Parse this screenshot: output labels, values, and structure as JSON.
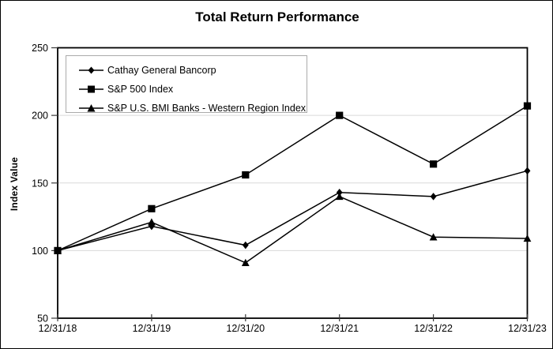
{
  "window": {
    "title": "Total Return Performance"
  },
  "chart_data": {
    "type": "line",
    "title": "Total Return Performance",
    "xlabel": "",
    "ylabel": "Index Value",
    "categories": [
      "12/31/18",
      "12/31/19",
      "12/31/20",
      "12/31/21",
      "12/31/22",
      "12/31/23"
    ],
    "series": [
      {
        "name": "Cathay General Bancorp",
        "marker": "diamond",
        "values": [
          100,
          118,
          104,
          143,
          140,
          159
        ]
      },
      {
        "name": "S&P 500 Index",
        "marker": "square",
        "values": [
          100,
          131,
          156,
          200,
          164,
          207
        ]
      },
      {
        "name": "S&P U.S. BMI Banks - Western Region Index",
        "marker": "triangle",
        "values": [
          100,
          121,
          91,
          140,
          110,
          109
        ]
      }
    ],
    "ylim": [
      50,
      250
    ],
    "yticks": [
      50,
      100,
      150,
      200,
      250
    ],
    "gridlines": [
      100,
      150,
      200
    ],
    "grid": "horizontal-light",
    "legend_position": "top-left-inside",
    "colors": {
      "line": "#000000",
      "marker": "#000000",
      "gridline": "#d9d9d9",
      "frame": "#000000",
      "tick": "#3a3a3a",
      "text": "#000000",
      "legend_border": "#ababab",
      "background": "#ffffff"
    }
  }
}
